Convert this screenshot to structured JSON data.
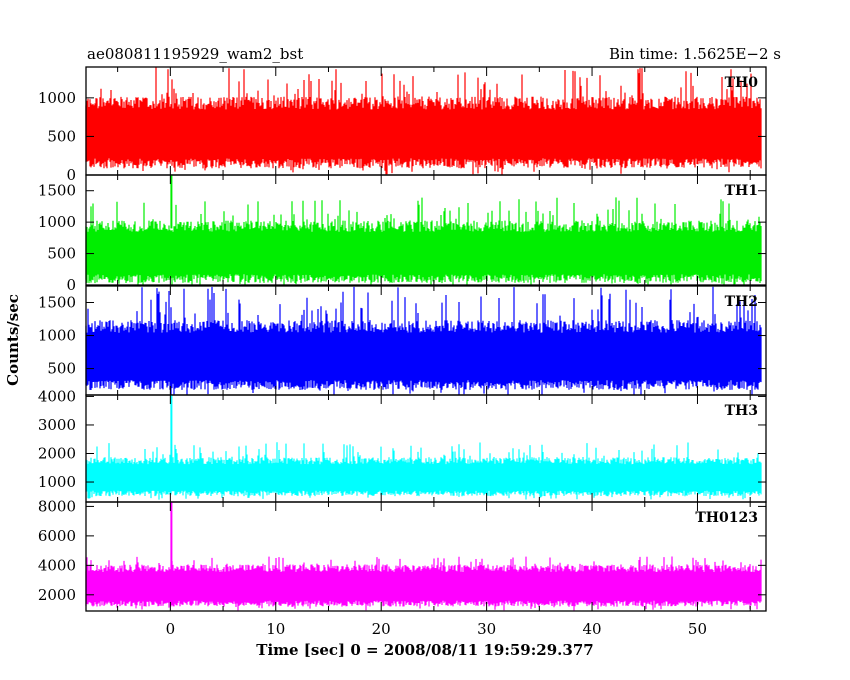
{
  "chart_data": {
    "type": "line",
    "title_left": "ae080811195929_wam2_bst",
    "title_right": "Bin time: 1.5625E−2 s",
    "xlabel": "Time [sec] 0 = 2008/08/11 19:59:29.377",
    "ylabel": "Counts/sec",
    "xlim": [
      -8,
      56.5
    ],
    "x_ticks": [
      0,
      10,
      20,
      30,
      40,
      50
    ],
    "x_tick_labels": [
      "0",
      "10",
      "20",
      "30",
      "40",
      "50"
    ],
    "data_x_range": [
      -8,
      56
    ],
    "bin_time_s": 0.015625,
    "grid": false,
    "panels": [
      {
        "name": "TH0",
        "color": "#ff0000",
        "ylim": [
          0,
          1400
        ],
        "y_ticks": [
          0,
          500,
          1000
        ],
        "y_tick_labels": [
          "0",
          "500",
          "1000"
        ],
        "typical_low": 150,
        "typical_high": 900,
        "peak_max": 1400,
        "spike": null
      },
      {
        "name": "TH1",
        "color": "#00ee00",
        "ylim": [
          0,
          1750
        ],
        "y_ticks": [
          0,
          500,
          1000,
          1500
        ],
        "y_tick_labels": [
          "0",
          "500",
          "1000",
          "1500"
        ],
        "typical_low": 100,
        "typical_high": 900,
        "peak_max": 1400,
        "spike": {
          "x": 0.1,
          "y": 1750
        }
      },
      {
        "name": "TH2",
        "color": "#0000ff",
        "ylim": [
          100,
          1750
        ],
        "y_ticks": [
          500,
          1000,
          1500
        ],
        "y_tick_labels": [
          "500",
          "1000",
          "1500"
        ],
        "typical_low": 250,
        "typical_high": 1100,
        "peak_max": 1750,
        "spike": null
      },
      {
        "name": "TH3",
        "color": "#00ffff",
        "ylim": [
          300,
          4050
        ],
        "y_ticks": [
          1000,
          2000,
          3000,
          4000
        ],
        "y_tick_labels": [
          "1000",
          "2000",
          "3000",
          "4000"
        ],
        "typical_low": 600,
        "typical_high": 1700,
        "peak_max": 2400,
        "spike": {
          "x": 0.1,
          "y": 4050
        }
      },
      {
        "name": "TH0123",
        "color": "#ff00ff",
        "ylim": [
          900,
          8300
        ],
        "y_ticks": [
          2000,
          4000,
          6000,
          8000
        ],
        "y_tick_labels": [
          "2000",
          "4000",
          "6000",
          "8000"
        ],
        "typical_low": 1400,
        "typical_high": 3700,
        "peak_max": 4600,
        "spike": {
          "x": 0.1,
          "y": 8300
        }
      }
    ]
  }
}
